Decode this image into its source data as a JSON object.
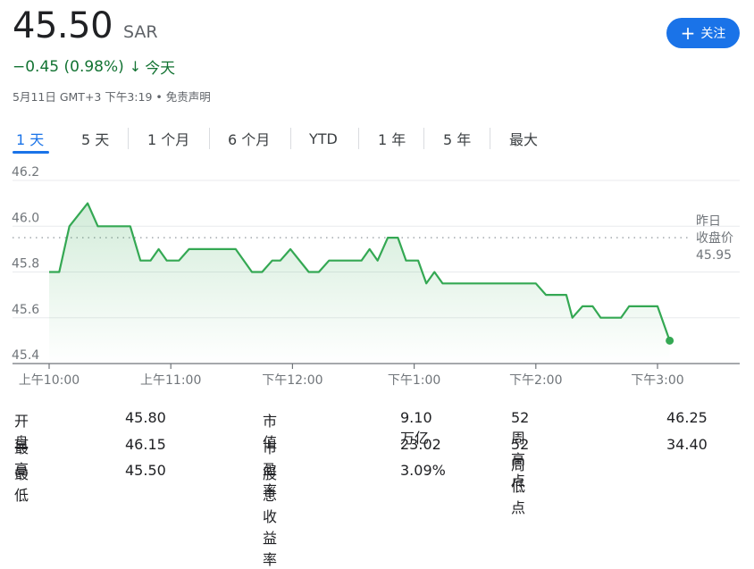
{
  "header": {
    "price": "45.50",
    "currency": "SAR",
    "change": "−0.45 (0.98%)",
    "change_arrow": "↓",
    "change_period": "今天",
    "date_time": "5月11日 GMT+3 下午3:19",
    "separator": "•",
    "disclaimer": "免责声明",
    "follow_label": "关注",
    "follow_icon": "plus-icon",
    "down_color": "#137333",
    "accent": "#1a73e8"
  },
  "tabs": [
    {
      "label": "1 天",
      "active": true
    },
    {
      "label": "5 天",
      "active": false
    },
    {
      "label": "1 个月",
      "active": false
    },
    {
      "label": "6 个月",
      "active": false
    },
    {
      "label": "YTD",
      "active": false
    },
    {
      "label": "1 年",
      "active": false
    },
    {
      "label": "5 年",
      "active": false
    },
    {
      "label": "最大",
      "active": false
    }
  ],
  "chart_data": {
    "type": "line",
    "color": "#34a853",
    "fill": true,
    "grid": true,
    "ylim": [
      45.4,
      46.2
    ],
    "y_ticks": [
      "45.4",
      "45.6",
      "45.8",
      "46.0",
      "46.2"
    ],
    "x_ticks": [
      {
        "t": 600,
        "label": "上午10:00"
      },
      {
        "t": 660,
        "label": "上午11:00"
      },
      {
        "t": 720,
        "label": "下午12:00"
      },
      {
        "t": 780,
        "label": "下午1:00"
      },
      {
        "t": 840,
        "label": "下午2:00"
      },
      {
        "t": 900,
        "label": "下午3:00"
      }
    ],
    "xlim": [
      600,
      925
    ],
    "reference": {
      "value": 45.95,
      "label_line1": "昨日",
      "label_line2": "收盘价",
      "label_value": "45.95"
    },
    "points": [
      [
        600,
        45.8
      ],
      [
        605,
        45.8
      ],
      [
        610,
        46.0
      ],
      [
        619,
        46.1
      ],
      [
        624,
        46.0
      ],
      [
        640,
        46.0
      ],
      [
        645,
        45.85
      ],
      [
        650,
        45.85
      ],
      [
        654,
        45.9
      ],
      [
        658,
        45.85
      ],
      [
        664,
        45.85
      ],
      [
        669,
        45.9
      ],
      [
        692,
        45.9
      ],
      [
        700,
        45.8
      ],
      [
        705,
        45.8
      ],
      [
        710,
        45.85
      ],
      [
        714,
        45.85
      ],
      [
        719,
        45.9
      ],
      [
        728,
        45.8
      ],
      [
        733,
        45.8
      ],
      [
        738,
        45.85
      ],
      [
        754,
        45.85
      ],
      [
        758,
        45.9
      ],
      [
        762,
        45.85
      ],
      [
        767,
        45.95
      ],
      [
        772,
        45.95
      ],
      [
        776,
        45.85
      ],
      [
        782,
        45.85
      ],
      [
        786,
        45.75
      ],
      [
        790,
        45.8
      ],
      [
        794,
        45.75
      ],
      [
        840,
        45.75
      ],
      [
        845,
        45.7
      ],
      [
        855,
        45.7
      ],
      [
        858,
        45.6
      ],
      [
        863,
        45.65
      ],
      [
        868,
        45.65
      ],
      [
        872,
        45.6
      ],
      [
        882,
        45.6
      ],
      [
        886,
        45.65
      ],
      [
        896,
        45.65
      ],
      [
        900,
        45.65
      ],
      [
        906,
        45.5
      ]
    ]
  },
  "stats": [
    {
      "label": "开盘",
      "value": "45.80"
    },
    {
      "label": "最高",
      "value": "46.15"
    },
    {
      "label": "最低",
      "value": "45.50"
    },
    {
      "label": "市值",
      "value": "9.10万亿"
    },
    {
      "label": "市盈率",
      "value": "23.02"
    },
    {
      "label": "股息收益率",
      "value": "3.09%"
    },
    {
      "label": "52 周高点",
      "value": "46.25"
    },
    {
      "label": "52 周低点",
      "value": "34.40"
    }
  ]
}
